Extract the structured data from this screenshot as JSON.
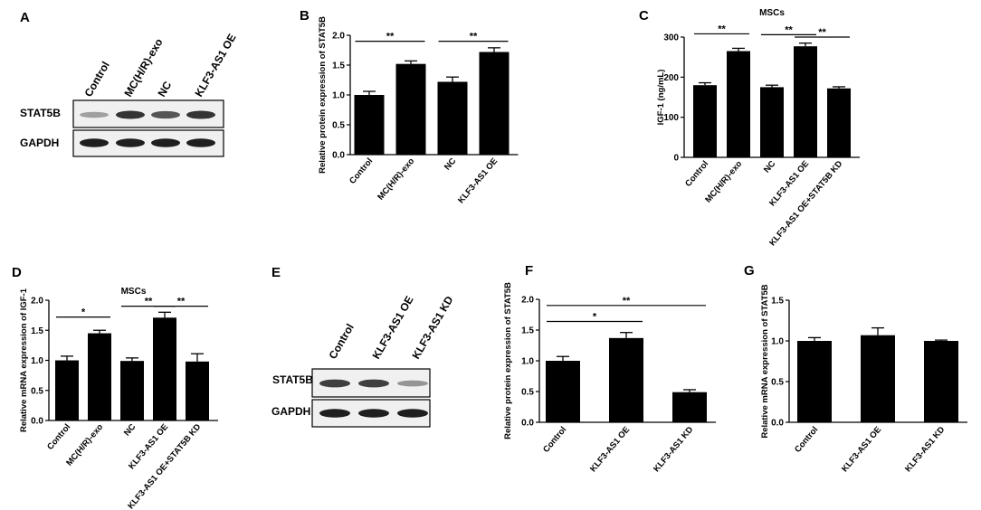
{
  "panels": {
    "A": "A",
    "B": "B",
    "C": "C",
    "D": "D",
    "E": "E",
    "F": "F",
    "G": "G"
  },
  "blot_a": {
    "lanes": [
      "Control",
      "MC(H/R)-exo",
      "NC",
      "KLF3-AS1 OE"
    ],
    "rows": [
      "STAT5B",
      "GAPDH"
    ],
    "intensity": [
      [
        0.35,
        0.85,
        0.7,
        0.85
      ],
      [
        0.95,
        0.95,
        0.95,
        0.95
      ]
    ]
  },
  "blot_e": {
    "lanes": [
      "Control",
      "KLF3-AS1 OE",
      "KLF3-AS1 KD"
    ],
    "rows": [
      "STAT5B",
      "GAPDH"
    ],
    "intensity": [
      [
        0.8,
        0.8,
        0.4
      ],
      [
        0.95,
        0.95,
        0.95
      ]
    ]
  },
  "chart_data": [
    {
      "id": "B",
      "type": "bar",
      "title": "",
      "ylabel": "Relative protein expression of STAT5B",
      "categories": [
        "Control",
        "MC(H/R)-exo",
        "NC",
        "KLF3-AS1 OE"
      ],
      "values": [
        1.0,
        1.52,
        1.22,
        1.72
      ],
      "errors": [
        0.06,
        0.05,
        0.08,
        0.07
      ],
      "ylim": [
        0,
        2.0
      ],
      "yticks": [
        "0.0",
        "0.5",
        "1.0",
        "1.5",
        "2.0"
      ],
      "significance": [
        {
          "from": 0,
          "to": 1,
          "y": 1.9,
          "label": "**"
        },
        {
          "from": 2,
          "to": 3,
          "y": 1.9,
          "label": "**"
        }
      ]
    },
    {
      "id": "C",
      "type": "bar",
      "title": "MSCs",
      "ylabel": "IGF-1 (ng/mL)",
      "categories": [
        "Control",
        "MC(H/R)-exo",
        "NC",
        "KLF3-AS1 OE",
        "KLF3-AS1 OE+STAT5B KD"
      ],
      "values": [
        180,
        265,
        175,
        277,
        172
      ],
      "errors": [
        6,
        7,
        5,
        8,
        4
      ],
      "ylim": [
        0,
        300
      ],
      "yticks": [
        "0",
        "100",
        "200",
        "300"
      ],
      "significance": [
        {
          "from": 0,
          "to": 1,
          "y": 308,
          "label": "**"
        },
        {
          "from": 2,
          "to": 3,
          "y": 306,
          "label": "**"
        },
        {
          "from": 3,
          "to": 4,
          "y": 300,
          "label": "**"
        }
      ]
    },
    {
      "id": "D",
      "type": "bar",
      "title": "MSCs",
      "ylabel": "Relative mRNA expression of IGF-1",
      "categories": [
        "Control",
        "MC(H/R)-exo",
        "NC",
        "KLF3-AS1 OE",
        "KLF3-AS1 OE+STAT5B KD"
      ],
      "values": [
        1.0,
        1.45,
        0.99,
        1.71,
        0.98
      ],
      "errors": [
        0.07,
        0.05,
        0.05,
        0.09,
        0.13
      ],
      "ylim": [
        0,
        2.0
      ],
      "yticks": [
        "0.0",
        "0.5",
        "1.0",
        "1.5",
        "2.0"
      ],
      "significance": [
        {
          "from": 0,
          "to": 1,
          "y": 1.72,
          "label": "*"
        },
        {
          "from": 2,
          "to": 3,
          "y": 1.9,
          "label": "**"
        },
        {
          "from": 3,
          "to": 4,
          "y": 1.9,
          "label": "**"
        }
      ]
    },
    {
      "id": "F",
      "type": "bar",
      "title": "",
      "ylabel": "Relative protein expression of STAT5B",
      "categories": [
        "Control",
        "KLF3-AS1 OE",
        "KLF3-AS1 KD"
      ],
      "values": [
        1.0,
        1.37,
        0.49
      ],
      "errors": [
        0.07,
        0.09,
        0.04
      ],
      "ylim": [
        0,
        2.0
      ],
      "yticks": [
        "0.0",
        "0.5",
        "1.0",
        "1.5",
        "2.0"
      ],
      "significance": [
        {
          "from": 0,
          "to": 1,
          "y": 1.64,
          "label": "*"
        },
        {
          "from": 0,
          "to": 2,
          "y": 1.9,
          "label": "**"
        }
      ]
    },
    {
      "id": "G",
      "type": "bar",
      "title": "",
      "ylabel": "Relative mRNA expression of STAT5B",
      "categories": [
        "Control",
        "KLF3-AS1 OE",
        "KLF3-AS1 KD"
      ],
      "values": [
        1.0,
        1.07,
        1.0
      ],
      "errors": [
        0.04,
        0.09,
        0.01
      ],
      "ylim": [
        0,
        1.5
      ],
      "yticks": [
        "0.0",
        "0.5",
        "1.0",
        "1.5"
      ],
      "significance": []
    }
  ]
}
